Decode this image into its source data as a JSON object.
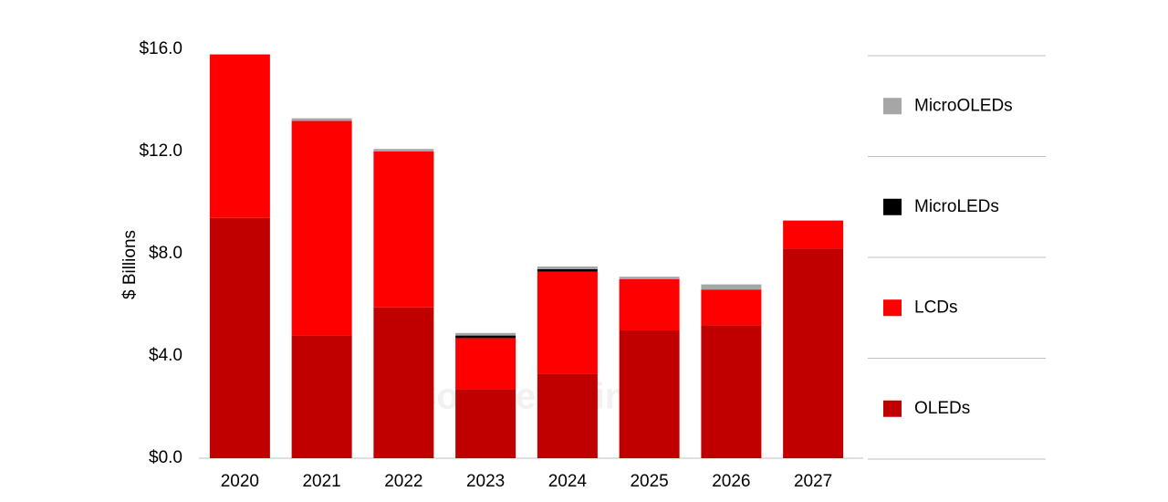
{
  "chart_data": {
    "type": "stacked-bar",
    "y_label": "$ Billions",
    "watermark": "Counterpoint",
    "categories": [
      "2020",
      "2021",
      "2022",
      "2023",
      "2024",
      "2025",
      "2026",
      "2027"
    ],
    "series": [
      {
        "name": "OLEDs",
        "color": "#c00000",
        "values": [
          9.4,
          4.8,
          5.9,
          2.7,
          3.3,
          5.0,
          5.2,
          8.2
        ]
      },
      {
        "name": "LCDs",
        "color": "#ff0000",
        "values": [
          6.4,
          8.4,
          6.1,
          2.0,
          4.0,
          2.0,
          1.4,
          1.1
        ]
      },
      {
        "name": "MicroLEDs",
        "color": "#000000",
        "values": [
          0,
          0,
          0,
          0.1,
          0.1,
          0,
          0,
          0
        ]
      },
      {
        "name": "MicroOLEDs",
        "color": "#a6a6a6",
        "values": [
          0,
          0.1,
          0.1,
          0.1,
          0.1,
          0.1,
          0.2,
          0
        ]
      }
    ],
    "ylim": [
      0,
      16
    ],
    "yticks": [
      {
        "value": 0,
        "label": "$0.0"
      },
      {
        "value": 4,
        "label": "$4.0"
      },
      {
        "value": 8,
        "label": "$8.0"
      },
      {
        "value": 12,
        "label": "$12.0"
      },
      {
        "value": 16,
        "label": "$16.0"
      }
    ],
    "legend": "right"
  }
}
